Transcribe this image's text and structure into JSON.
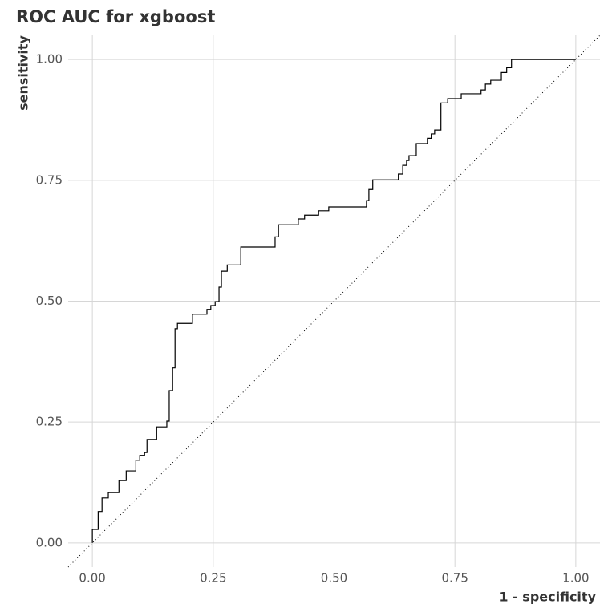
{
  "chart_data": {
    "type": "line",
    "title": "ROC AUC for xgboost",
    "x_label": "1 - specificity",
    "y_label": "sensitivity",
    "xlim": [
      -0.05,
      1.05
    ],
    "ylim": [
      -0.05,
      1.05
    ],
    "xticks": [
      {
        "value": 0,
        "label": "0.00"
      },
      {
        "value": 0.25,
        "label": "0.25"
      },
      {
        "value": 0.5,
        "label": "0.50"
      },
      {
        "value": 0.75,
        "label": "0.75"
      },
      {
        "value": 1,
        "label": "1.00"
      }
    ],
    "yticks": [
      {
        "value": 0,
        "label": "0.00"
      },
      {
        "value": 0.25,
        "label": "0.25"
      },
      {
        "value": 0.5,
        "label": "0.50"
      },
      {
        "value": 0.75,
        "label": "0.75"
      },
      {
        "value": 1,
        "label": "1.00"
      }
    ],
    "grid": true,
    "color": "#000000",
    "reference_line": true,
    "x": [
      0,
      0,
      0.012,
      0.012,
      0.02,
      0.02,
      0.033,
      0.033,
      0.055,
      0.055,
      0.07,
      0.07,
      0.09,
      0.09,
      0.098,
      0.098,
      0.108,
      0.108,
      0.113,
      0.113,
      0.133,
      0.133,
      0.154,
      0.154,
      0.159,
      0.159,
      0.166,
      0.166,
      0.171,
      0.171,
      0.176,
      0.176,
      0.207,
      0.207,
      0.237,
      0.237,
      0.245,
      0.245,
      0.254,
      0.254,
      0.262,
      0.262,
      0.267,
      0.267,
      0.279,
      0.279,
      0.307,
      0.307,
      0.378,
      0.378,
      0.385,
      0.385,
      0.426,
      0.426,
      0.439,
      0.439,
      0.468,
      0.468,
      0.489,
      0.489,
      0.567,
      0.567,
      0.572,
      0.572,
      0.58,
      0.58,
      0.633,
      0.633,
      0.642,
      0.642,
      0.65,
      0.65,
      0.655,
      0.655,
      0.67,
      0.67,
      0.693,
      0.693,
      0.701,
      0.701,
      0.708,
      0.708,
      0.721,
      0.721,
      0.735,
      0.735,
      0.763,
      0.763,
      0.804,
      0.804,
      0.813,
      0.813,
      0.824,
      0.824,
      0.846,
      0.846,
      0.857,
      0.857,
      0.867,
      0.867,
      1.0
    ],
    "values": [
      0,
      0.028,
      0.028,
      0.065,
      0.065,
      0.093,
      0.093,
      0.104,
      0.104,
      0.129,
      0.129,
      0.149,
      0.149,
      0.171,
      0.171,
      0.181,
      0.181,
      0.187,
      0.187,
      0.214,
      0.214,
      0.24,
      0.24,
      0.252,
      0.252,
      0.315,
      0.315,
      0.362,
      0.362,
      0.443,
      0.443,
      0.454,
      0.454,
      0.473,
      0.473,
      0.483,
      0.483,
      0.491,
      0.491,
      0.499,
      0.499,
      0.529,
      0.529,
      0.562,
      0.562,
      0.575,
      0.575,
      0.612,
      0.612,
      0.633,
      0.633,
      0.658,
      0.658,
      0.67,
      0.67,
      0.678,
      0.678,
      0.687,
      0.687,
      0.695,
      0.695,
      0.708,
      0.708,
      0.731,
      0.731,
      0.751,
      0.751,
      0.763,
      0.763,
      0.781,
      0.781,
      0.791,
      0.791,
      0.801,
      0.801,
      0.826,
      0.826,
      0.837,
      0.837,
      0.846,
      0.846,
      0.854,
      0.854,
      0.91,
      0.91,
      0.919,
      0.919,
      0.929,
      0.929,
      0.937,
      0.937,
      0.949,
      0.949,
      0.957,
      0.957,
      0.973,
      0.973,
      0.983,
      0.983,
      1.0,
      1.0
    ]
  }
}
